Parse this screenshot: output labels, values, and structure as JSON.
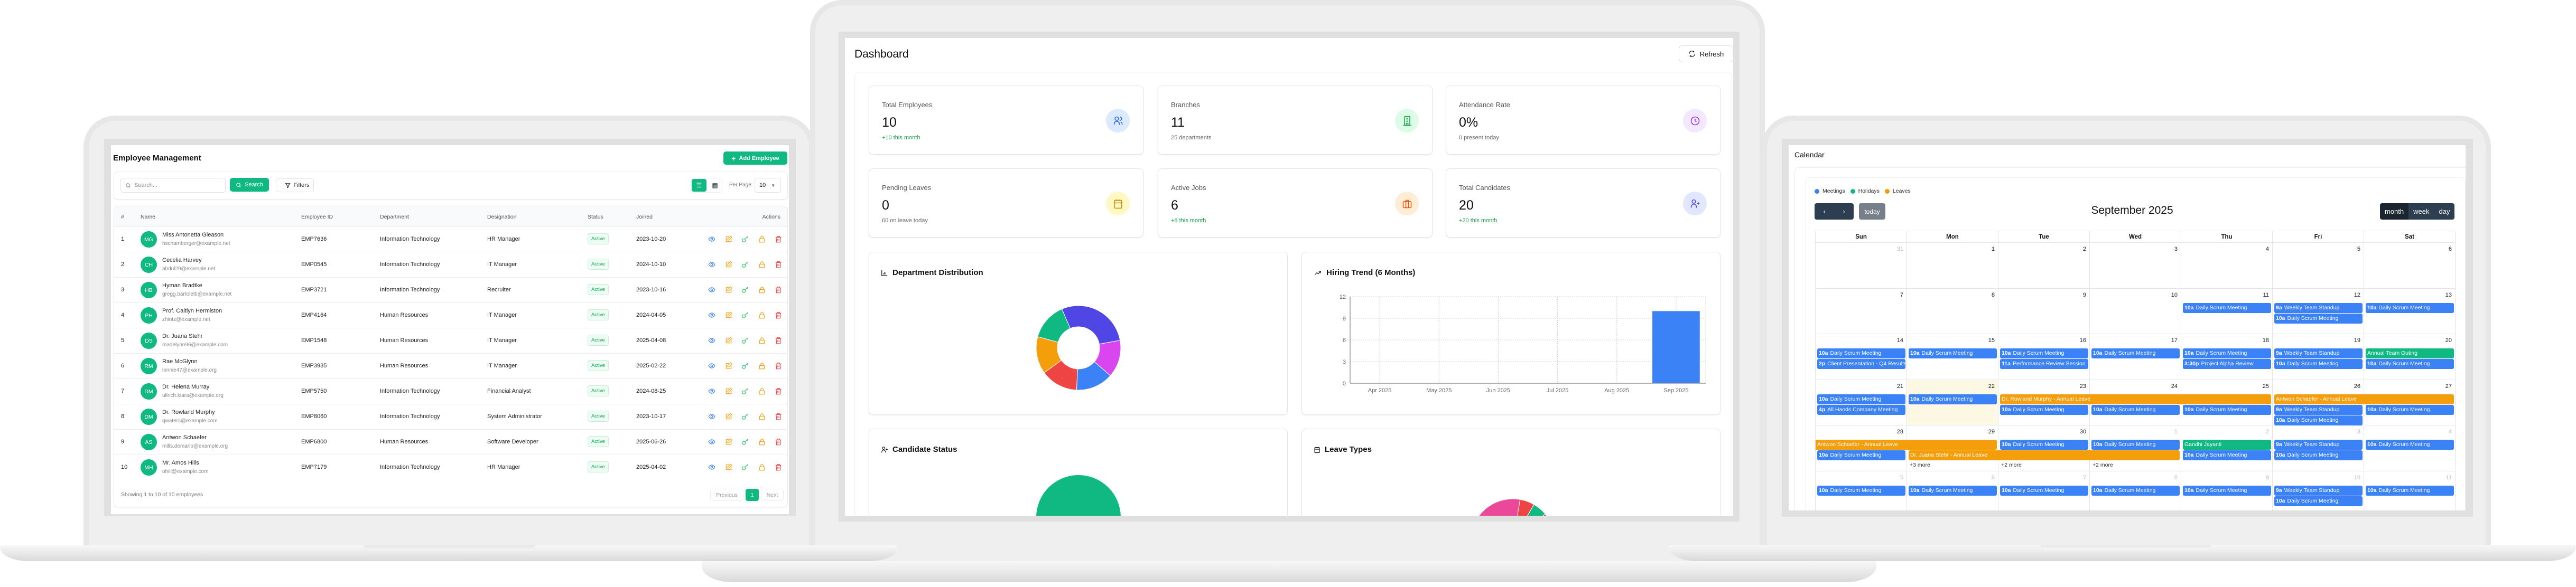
{
  "employee_app": {
    "title": "Employee Management",
    "add_button": "Add Employee",
    "search_placeholder": "Search...",
    "search_button": "Search",
    "filters_button": "Filters",
    "per_page_label": "Per Page:",
    "per_page_value": "10",
    "columns": [
      "#",
      "Name",
      "Employee ID",
      "Department",
      "Designation",
      "Status",
      "Joined",
      "Actions"
    ],
    "rows": [
      {
        "n": "1",
        "initials": "MG",
        "name": "Miss Antonetta Gleason",
        "email": "hschamberger@example.net",
        "id": "EMP7636",
        "dept": "Information Technology",
        "designation": "HR Manager",
        "status": "Active",
        "joined": "2023-10-20"
      },
      {
        "n": "2",
        "initials": "CH",
        "name": "Cecelia Harvey",
        "email": "abdul29@example.net",
        "id": "EMP0545",
        "dept": "Information Technology",
        "designation": "IT Manager",
        "status": "Active",
        "joined": "2024-10-10"
      },
      {
        "n": "3",
        "initials": "HB",
        "name": "Hyman Bradtke",
        "email": "gregg.bartoletti@example.net",
        "id": "EMP3721",
        "dept": "Information Technology",
        "designation": "Recruiter",
        "status": "Active",
        "joined": "2023-10-16"
      },
      {
        "n": "4",
        "initials": "PH",
        "name": "Prof. Caitlyn Hermiston",
        "email": "zhintz@example.net",
        "id": "EMP4164",
        "dept": "Human Resources",
        "designation": "IT Manager",
        "status": "Active",
        "joined": "2024-04-05"
      },
      {
        "n": "5",
        "initials": "DS",
        "name": "Dr. Juana Stehr",
        "email": "madelynn96@example.com",
        "id": "EMP1548",
        "dept": "Human Resources",
        "designation": "IT Manager",
        "status": "Active",
        "joined": "2025-04-08"
      },
      {
        "n": "6",
        "initials": "RM",
        "name": "Rae McGlynn",
        "email": "lonnie47@example.org",
        "id": "EMP3935",
        "dept": "Human Resources",
        "designation": "IT Manager",
        "status": "Active",
        "joined": "2025-02-22"
      },
      {
        "n": "7",
        "initials": "DM",
        "name": "Dr. Helena Murray",
        "email": "ullrich.kiara@example.org",
        "id": "EMP5750",
        "dept": "Information Technology",
        "designation": "Financial Analyst",
        "status": "Active",
        "joined": "2024-08-25"
      },
      {
        "n": "8",
        "initials": "DM",
        "name": "Dr. Rowland Murphy",
        "email": "qwaters@example.com",
        "id": "EMP8060",
        "dept": "Information Technology",
        "designation": "System Administrator",
        "status": "Active",
        "joined": "2023-10-17"
      },
      {
        "n": "9",
        "initials": "AS",
        "name": "Antwon Schaefer",
        "email": "mills.demario@example.org",
        "id": "EMP6800",
        "dept": "Human Resources",
        "designation": "Software Developer",
        "status": "Active",
        "joined": "2025-06-26"
      },
      {
        "n": "10",
        "initials": "MH",
        "name": "Mr. Amos Hills",
        "email": "ohill@example.com",
        "id": "EMP7179",
        "dept": "Information Technology",
        "designation": "HR Manager",
        "status": "Active",
        "joined": "2025-04-02"
      }
    ],
    "row_actions": [
      "eye-icon",
      "edit-icon",
      "key-icon",
      "lock-icon",
      "trash-icon"
    ],
    "footer": "Showing 1 to 10 of 10 employees",
    "pagination": {
      "prev": "Previous",
      "page": "1",
      "next": "Next"
    },
    "accent": "#10b981"
  },
  "dashboard": {
    "title": "Dashboard",
    "refresh": "Refresh",
    "stats": [
      {
        "label": "Total Employees",
        "value": "10",
        "sub": "+10 this month",
        "positive": true,
        "icon": "users-icon",
        "color": "#2563eb",
        "bg": "#dbeafe"
      },
      {
        "label": "Branches",
        "value": "11",
        "sub": "25 departments",
        "positive": false,
        "icon": "building-icon",
        "color": "#16a34a",
        "bg": "#dcfce7"
      },
      {
        "label": "Attendance Rate",
        "value": "0%",
        "sub": "0 present today",
        "positive": false,
        "icon": "clock-icon",
        "color": "#9333ea",
        "bg": "#f3e8ff"
      },
      {
        "label": "Pending Leaves",
        "value": "0",
        "sub": "60 on leave today",
        "positive": false,
        "icon": "calendar-icon",
        "color": "#ca8a04",
        "bg": "#fef9c3"
      },
      {
        "label": "Active Jobs",
        "value": "6",
        "sub": "+8 this month",
        "positive": true,
        "icon": "briefcase-icon",
        "color": "#ea580c",
        "bg": "#ffedd5"
      },
      {
        "label": "Total Candidates",
        "value": "20",
        "sub": "+20 this month",
        "positive": true,
        "icon": "user-plus-icon",
        "color": "#4f46e5",
        "bg": "#e0e7ff"
      }
    ]
  },
  "chart_data": [
    {
      "type": "pie",
      "donut": true,
      "title": "Department Distribution",
      "values": [
        2,
        1,
        1,
        1,
        1,
        1
      ],
      "colors": [
        "#4f46e5",
        "#d946ef",
        "#3b82f6",
        "#ef4444",
        "#f59e0b",
        "#10b981"
      ]
    },
    {
      "type": "bar",
      "title": "Hiring Trend (6 Months)",
      "categories": [
        "Apr 2025",
        "May 2025",
        "Jun 2025",
        "Jul 2025",
        "Aug 2025",
        "Sep 2025"
      ],
      "values": [
        0,
        0,
        0,
        0,
        0,
        10
      ],
      "ylim": [
        0,
        12
      ],
      "yticks": [
        "0",
        "3",
        "6",
        "9",
        "12"
      ],
      "grid": true,
      "color": "#3b82f6"
    },
    {
      "type": "pie",
      "title": "Candidate Status",
      "values": [
        1
      ],
      "colors": [
        "#10b981"
      ]
    },
    {
      "type": "pie",
      "donut": true,
      "title": "Leave Types",
      "values": [
        16,
        1,
        1
      ],
      "colors": [
        "#ec4899",
        "#ef4444",
        "#10b981"
      ]
    }
  ],
  "calendar": {
    "title": "Calendar",
    "legend": [
      {
        "label": "Meetings",
        "color": "#3b82f6"
      },
      {
        "label": "Holidays",
        "color": "#10b981"
      },
      {
        "label": "Leaves",
        "color": "#f59e0b"
      }
    ],
    "today_button": "today",
    "month_title": "September 2025",
    "views": [
      "month",
      "week",
      "day"
    ],
    "active_view": "month",
    "weekdays": [
      "Sun",
      "Mon",
      "Tue",
      "Wed",
      "Thu",
      "Fri",
      "Sat"
    ],
    "colors": {
      "meeting": "#3b82f6",
      "holiday": "#10b981",
      "leave": "#f59e0b",
      "today_bg": "#fdf8e3"
    },
    "weeks": [
      [
        {
          "day": "31",
          "muted": true,
          "events": []
        },
        {
          "day": "1",
          "events": []
        },
        {
          "day": "2",
          "events": []
        },
        {
          "day": "3",
          "events": []
        },
        {
          "day": "4",
          "events": []
        },
        {
          "day": "5",
          "events": []
        },
        {
          "day": "6",
          "events": []
        }
      ],
      [
        {
          "day": "7",
          "events": []
        },
        {
          "day": "8",
          "events": []
        },
        {
          "day": "9",
          "events": []
        },
        {
          "day": "10",
          "events": []
        },
        {
          "day": "11",
          "events": [
            {
              "time": "10a",
              "title": "Daily Scrum Meeting",
              "type": "meeting"
            }
          ]
        },
        {
          "day": "12",
          "events": [
            {
              "time": "9a",
              "title": "Weekly Team Standup",
              "type": "meeting"
            },
            {
              "time": "10a",
              "title": "Daily Scrum Meeting",
              "type": "meeting"
            }
          ]
        },
        {
          "day": "13",
          "events": [
            {
              "time": "10a",
              "title": "Daily Scrum Meeting",
              "type": "meeting"
            }
          ]
        }
      ],
      [
        {
          "day": "14",
          "events": [
            {
              "time": "10a",
              "title": "Daily Scrum Meeting",
              "type": "meeting"
            },
            {
              "time": "2p",
              "title": "Client Presentation - Q4 Results",
              "type": "meeting"
            }
          ]
        },
        {
          "day": "15",
          "events": [
            {
              "time": "10a",
              "title": "Daily Scrum Meeting",
              "type": "meeting"
            }
          ]
        },
        {
          "day": "16",
          "events": [
            {
              "time": "10a",
              "title": "Daily Scrum Meeting",
              "type": "meeting"
            },
            {
              "time": "11a",
              "title": "Performance Review Session",
              "type": "meeting"
            }
          ]
        },
        {
          "day": "17",
          "events": [
            {
              "time": "10a",
              "title": "Daily Scrum Meeting",
              "type": "meeting"
            }
          ]
        },
        {
          "day": "18",
          "events": [
            {
              "time": "10a",
              "title": "Daily Scrum Meeting",
              "type": "meeting"
            },
            {
              "time": "3:30p",
              "title": "Project Alpha Review",
              "type": "meeting"
            }
          ]
        },
        {
          "day": "19",
          "events": [
            {
              "time": "9a",
              "title": "Weekly Team Standup",
              "type": "meeting"
            },
            {
              "time": "10a",
              "title": "Daily Scrum Meeting",
              "type": "meeting"
            }
          ]
        },
        {
          "day": "20",
          "events": [
            {
              "time": "",
              "title": "Annual Team Outing",
              "type": "holiday"
            },
            {
              "time": "10a",
              "title": "Daily Scrum Meeting",
              "type": "meeting"
            }
          ]
        }
      ],
      [
        {
          "day": "21",
          "events": [
            {
              "time": "10a",
              "title": "Daily Scrum Meeting",
              "type": "meeting"
            },
            {
              "time": "4p",
              "title": "All Hands Company Meeting",
              "type": "meeting"
            }
          ]
        },
        {
          "day": "22",
          "today": true,
          "events": [
            {
              "time": "10a",
              "title": "Daily Scrum Meeting",
              "type": "meeting"
            }
          ]
        },
        {
          "day": "23",
          "events": [
            {
              "time": "10a",
              "title": "Daily Scrum Meeting",
              "type": "meeting"
            }
          ]
        },
        {
          "day": "24",
          "events": [
            {
              "time": "10a",
              "title": "Daily Scrum Meeting",
              "type": "meeting"
            }
          ]
        },
        {
          "day": "25",
          "events": [
            {
              "time": "10a",
              "title": "Daily Scrum Meeting",
              "type": "meeting"
            }
          ]
        },
        {
          "day": "26",
          "events": [
            {
              "time": "9a",
              "title": "Weekly Team Standup",
              "type": "meeting"
            },
            {
              "time": "10a",
              "title": "Daily Scrum Meeting",
              "type": "meeting"
            }
          ]
        },
        {
          "day": "27",
          "events": [
            {
              "time": "10a",
              "title": "Daily Scrum Meeting",
              "type": "meeting"
            }
          ]
        }
      ],
      [
        {
          "day": "28",
          "events": [
            {
              "time": "10a",
              "title": "Daily Scrum Meeting",
              "type": "meeting"
            }
          ]
        },
        {
          "day": "29",
          "events": [],
          "more": "+3 more"
        },
        {
          "day": "30",
          "events": [
            {
              "time": "10a",
              "title": "Daily Scrum Meeting",
              "type": "meeting"
            }
          ],
          "more": "+2 more"
        },
        {
          "day": "1",
          "muted": true,
          "events": [
            {
              "time": "10a",
              "title": "Daily Scrum Meeting",
              "type": "meeting"
            }
          ],
          "more": "+2 more"
        },
        {
          "day": "2",
          "muted": true,
          "events": [
            {
              "time": "",
              "title": "Gandhi Jayanti",
              "type": "holiday"
            },
            {
              "time": "10a",
              "title": "Daily Scrum Meeting",
              "type": "meeting"
            }
          ]
        },
        {
          "day": "3",
          "muted": true,
          "events": [
            {
              "time": "9a",
              "title": "Weekly Team Standup",
              "type": "meeting"
            },
            {
              "time": "10a",
              "title": "Daily Scrum Meeting",
              "type": "meeting"
            }
          ]
        },
        {
          "day": "4",
          "muted": true,
          "events": [
            {
              "time": "10a",
              "title": "Daily Scrum Meeting",
              "type": "meeting"
            }
          ]
        }
      ],
      [
        {
          "day": "5",
          "muted": true,
          "events": [
            {
              "time": "10a",
              "title": "Daily Scrum Meeting",
              "type": "meeting"
            }
          ]
        },
        {
          "day": "6",
          "muted": true,
          "events": [
            {
              "time": "10a",
              "title": "Daily Scrum Meeting",
              "type": "meeting"
            }
          ]
        },
        {
          "day": "7",
          "muted": true,
          "events": [
            {
              "time": "10a",
              "title": "Daily Scrum Meeting",
              "type": "meeting"
            }
          ]
        },
        {
          "day": "8",
          "muted": true,
          "events": [
            {
              "time": "10a",
              "title": "Daily Scrum Meeting",
              "type": "meeting"
            }
          ]
        },
        {
          "day": "9",
          "muted": true,
          "events": [
            {
              "time": "10a",
              "title": "Daily Scrum Meeting",
              "type": "meeting"
            }
          ]
        },
        {
          "day": "10",
          "muted": true,
          "events": [
            {
              "time": "9a",
              "title": "Weekly Team Standup",
              "type": "meeting"
            },
            {
              "time": "10a",
              "title": "Daily Scrum Meeting",
              "type": "meeting"
            }
          ]
        },
        {
          "day": "11",
          "muted": true,
          "events": [
            {
              "time": "10a",
              "title": "Daily Scrum Meeting",
              "type": "meeting"
            }
          ]
        }
      ]
    ],
    "spans": [
      {
        "week": 3,
        "start_day": "23",
        "end_day": "25",
        "title": "Dr. Rowland Murphy - Annual Leave",
        "type": "leave"
      },
      {
        "week": 3,
        "start_day": "26",
        "end_day": "27",
        "title": "Antwon Schaefer - Annual Leave",
        "type": "leave"
      },
      {
        "week": 4,
        "start_day": "28",
        "end_day": "29",
        "title": "Antwon Schaefer - Annual Leave",
        "type": "leave"
      },
      {
        "week": 4,
        "start_day": "29",
        "end_day": "1",
        "title": "Dr. Juana Stehr - Annual Leave",
        "type": "leave"
      }
    ]
  }
}
